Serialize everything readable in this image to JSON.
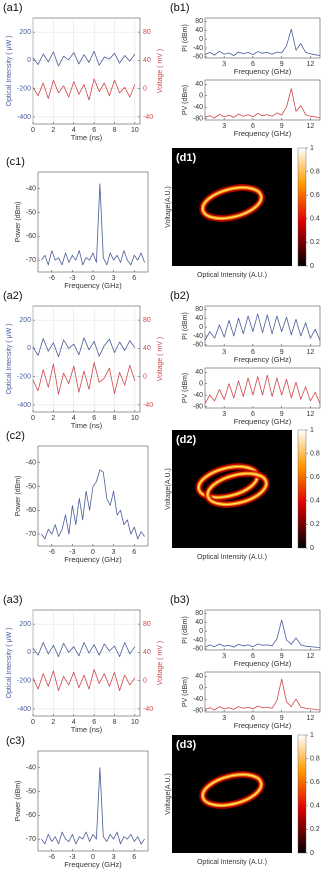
{
  "chart_data": [
    {
      "type": "line",
      "title": "(a1)",
      "xlabel": "Time (ns)",
      "ylabel": "Optical Intensity ( μW )",
      "y2label": "Voltage ( mV )",
      "grid": true,
      "x": [
        0,
        0.5,
        1,
        1.5,
        2,
        2.5,
        3,
        3.5,
        4,
        4.5,
        5,
        5.5,
        6,
        6.5,
        7,
        7.5,
        8,
        8.5,
        9,
        9.5,
        10
      ],
      "xlim": [
        0,
        10.5
      ],
      "xticks": [
        0,
        2,
        4,
        6,
        8,
        10
      ],
      "ylim": [
        -450,
        300
      ],
      "yticks": [
        -400,
        -200,
        0,
        200
      ],
      "y2lim": [
        -50,
        100
      ],
      "y2ticks": [
        -40,
        0,
        40,
        80
      ],
      "series": [
        {
          "color": "#4a5d9a",
          "values": [
            20,
            -30,
            45,
            -10,
            60,
            -40,
            30,
            5,
            55,
            -25,
            40,
            -15,
            65,
            -35,
            25,
            10,
            50,
            -20,
            35,
            -5,
            45
          ]
        },
        {
          "color": "#d0474a",
          "axis": "y2",
          "values": [
            2,
            -10,
            8,
            -14,
            12,
            -6,
            4,
            -12,
            10,
            -8,
            6,
            -16,
            14,
            -4,
            8,
            -10,
            12,
            -6,
            2,
            -12,
            6
          ]
        }
      ]
    },
    {
      "type": "line",
      "title": "(b1)",
      "xlabel": "Frequency (GHz)",
      "ylabel": "PI (dBm)",
      "grid": false,
      "x": [
        1,
        1.5,
        2,
        2.5,
        3,
        3.5,
        4,
        4.5,
        5,
        5.5,
        6,
        6.5,
        7,
        7.5,
        8,
        8.5,
        9,
        9.5,
        10,
        10.5,
        11,
        11.5,
        12,
        12.5,
        13
      ],
      "xlim": [
        1,
        13
      ],
      "xticks": [
        3,
        6,
        9,
        12
      ],
      "ylim": [
        -85,
        95
      ],
      "yticks": [
        -80,
        -40,
        0,
        40,
        80
      ],
      "series": [
        {
          "color": "#4a5d9a",
          "values": [
            -70,
            -60,
            -72,
            -55,
            -68,
            -62,
            -74,
            -58,
            -66,
            -60,
            -70,
            -56,
            -64,
            -60,
            -68,
            -58,
            -62,
            -30,
            45,
            -50,
            -20,
            -60,
            -66,
            -70,
            -74
          ]
        }
      ]
    },
    {
      "type": "line",
      "xlabel": "Frequency (GHz)",
      "ylabel": "PV (dBm)",
      "grid": false,
      "x": [
        1,
        1.5,
        2,
        2.5,
        3,
        3.5,
        4,
        4.5,
        5,
        5.5,
        6,
        6.5,
        7,
        7.5,
        8,
        8.5,
        9,
        9.5,
        10,
        10.5,
        11,
        11.5,
        12,
        12.5,
        13
      ],
      "xlim": [
        1,
        13
      ],
      "xticks": [
        3,
        6,
        9,
        12
      ],
      "ylim": [
        -85,
        55
      ],
      "yticks": [
        -80,
        -40,
        0,
        40
      ],
      "series": [
        {
          "color": "#d0474a",
          "values": [
            -75,
            -70,
            -78,
            -65,
            -74,
            -68,
            -76,
            -64,
            -72,
            -66,
            -74,
            -62,
            -70,
            -66,
            -72,
            -60,
            -68,
            -40,
            25,
            -55,
            -35,
            -66,
            -72,
            -74,
            -78
          ]
        }
      ]
    },
    {
      "type": "line",
      "title": "(c1)",
      "xlabel": "Frequency (GHz)",
      "ylabel": "Power (dBm)",
      "grid": false,
      "x": [
        -7.5,
        -7,
        -6.5,
        -6,
        -5.5,
        -5,
        -4.5,
        -4,
        -3.5,
        -3,
        -2.5,
        -2,
        -1.5,
        -1,
        -0.5,
        0,
        0.5,
        1,
        1.5,
        2,
        2.5,
        3,
        3.5,
        4,
        4.5,
        5,
        5.5,
        6,
        6.5,
        7,
        7.5
      ],
      "xlim": [
        -8,
        8
      ],
      "xticks": [
        -6,
        -3,
        0,
        3,
        6
      ],
      "ylim": [
        -75,
        -33
      ],
      "yticks": [
        -70,
        -60,
        -50,
        -40
      ],
      "series": [
        {
          "color": "#4a5d9a",
          "values": [
            -70,
            -68,
            -72,
            -66,
            -70,
            -69,
            -72,
            -67,
            -71,
            -68,
            -70,
            -66,
            -72,
            -69,
            -70,
            -67,
            -71,
            -38,
            -69,
            -72,
            -67,
            -70,
            -68,
            -71,
            -66,
            -70,
            -72,
            -68,
            -70,
            -67,
            -71
          ]
        }
      ]
    },
    {
      "type": "heatmap",
      "title": "(d1)",
      "xlabel": "Optical Intensity (A.U.)",
      "ylabel": "Voltage(A.U.)",
      "clim": [
        0,
        1
      ],
      "cticks": [
        0,
        0.2,
        0.4,
        0.6,
        0.8,
        1
      ]
    },
    {
      "type": "line",
      "title": "(a2)",
      "xlabel": "Time (ns)",
      "ylabel": "Optical Intensity ( μW )",
      "y2label": "Voltage ( mV )",
      "grid": true,
      "x": [
        0,
        0.5,
        1,
        1.5,
        2,
        2.5,
        3,
        3.5,
        4,
        4.5,
        5,
        5.5,
        6,
        6.5,
        7,
        7.5,
        8,
        8.5,
        9,
        9.5,
        10
      ],
      "xlim": [
        0,
        10.5
      ],
      "xticks": [
        0,
        2,
        4,
        6,
        8,
        10
      ],
      "ylim": [
        -450,
        300
      ],
      "yticks": [
        -400,
        -200,
        0,
        200
      ],
      "y2lim": [
        -50,
        100
      ],
      "y2ticks": [
        -40,
        0,
        40,
        80
      ],
      "series": [
        {
          "color": "#4a5d9a",
          "values": [
            10,
            -50,
            70,
            -20,
            40,
            -60,
            60,
            0,
            30,
            -45,
            75,
            -10,
            50,
            -55,
            20,
            65,
            -30,
            45,
            -15,
            55,
            5
          ]
        },
        {
          "color": "#d0474a",
          "axis": "y2",
          "values": [
            -5,
            -20,
            10,
            -15,
            18,
            -25,
            5,
            -10,
            15,
            -22,
            8,
            -18,
            20,
            -8,
            -2,
            12,
            -24,
            6,
            -12,
            16,
            -6
          ]
        }
      ]
    },
    {
      "type": "line",
      "title": "(b2)",
      "xlabel": "Frequency (GHz)",
      "ylabel": "PI (dBm)",
      "grid": false,
      "x": [
        1,
        1.5,
        2,
        2.5,
        3,
        3.5,
        4,
        4.5,
        5,
        5.5,
        6,
        6.5,
        7,
        7.5,
        8,
        8.5,
        9,
        9.5,
        10,
        10.5,
        11,
        11.5,
        12,
        12.5,
        13
      ],
      "xlim": [
        1,
        13
      ],
      "xticks": [
        3,
        6,
        9,
        12
      ],
      "ylim": [
        -85,
        95
      ],
      "yticks": [
        -80,
        -40,
        0,
        40,
        80
      ],
      "series": [
        {
          "color": "#4a5d9a",
          "values": [
            -60,
            -20,
            -50,
            10,
            -45,
            30,
            -40,
            40,
            -30,
            50,
            -20,
            60,
            -25,
            55,
            -30,
            50,
            -20,
            45,
            -35,
            35,
            -40,
            20,
            -50,
            -10,
            -60
          ]
        }
      ]
    },
    {
      "type": "line",
      "xlabel": "Frequency (GHz)",
      "ylabel": "PV (dBm)",
      "grid": false,
      "x": [
        1,
        1.5,
        2,
        2.5,
        3,
        3.5,
        4,
        4.5,
        5,
        5.5,
        6,
        6.5,
        7,
        7.5,
        8,
        8.5,
        9,
        9.5,
        10,
        10.5,
        11,
        11.5,
        12,
        12.5,
        13
      ],
      "xlim": [
        1,
        13
      ],
      "xticks": [
        3,
        6,
        9,
        12
      ],
      "ylim": [
        -85,
        55
      ],
      "yticks": [
        -80,
        -40,
        0,
        40
      ],
      "series": [
        {
          "color": "#d0474a",
          "values": [
            -70,
            -40,
            -60,
            -20,
            -55,
            0,
            -50,
            10,
            -45,
            20,
            -40,
            25,
            -40,
            30,
            -45,
            20,
            -40,
            15,
            -50,
            5,
            -55,
            -10,
            -60,
            -30,
            -70
          ]
        }
      ]
    },
    {
      "type": "line",
      "title": "(c2)",
      "xlabel": "Frequency (GHz)",
      "ylabel": "Power (dBm)",
      "grid": false,
      "x": [
        -7.5,
        -7,
        -6.5,
        -6,
        -5.5,
        -5,
        -4.5,
        -4,
        -3.5,
        -3,
        -2.5,
        -2,
        -1.5,
        -1,
        -0.5,
        0,
        0.5,
        1,
        1.5,
        2,
        2.5,
        3,
        3.5,
        4,
        4.5,
        5,
        5.5,
        6,
        6.5,
        7,
        7.5
      ],
      "xlim": [
        -8,
        8
      ],
      "xticks": [
        -6,
        -3,
        0,
        3,
        6
      ],
      "ylim": [
        -75,
        -33
      ],
      "yticks": [
        -70,
        -60,
        -50,
        -40
      ],
      "series": [
        {
          "color": "#4a5d9a",
          "values": [
            -70,
            -72,
            -68,
            -70,
            -66,
            -71,
            -68,
            -62,
            -70,
            -58,
            -66,
            -55,
            -64,
            -52,
            -60,
            -50,
            -48,
            -43,
            -44,
            -55,
            -58,
            -52,
            -62,
            -60,
            -66,
            -64,
            -70,
            -67,
            -72,
            -69,
            -71
          ]
        }
      ]
    },
    {
      "type": "heatmap",
      "title": "(d2)",
      "xlabel": "Optical Intensity (A.U.)",
      "ylabel": "Voltage(A.U.)",
      "clim": [
        0,
        1
      ],
      "cticks": [
        0,
        0.2,
        0.4,
        0.6,
        0.8,
        1
      ]
    },
    {
      "type": "line",
      "title": "(a3)",
      "xlabel": "Time (ns)",
      "ylabel": "Optical Intensity ( μW )",
      "y2label": "Voltage ( mV )",
      "grid": true,
      "x": [
        0,
        0.5,
        1,
        1.5,
        2,
        2.5,
        3,
        3.5,
        4,
        4.5,
        5,
        5.5,
        6,
        6.5,
        7,
        7.5,
        8,
        8.5,
        9,
        9.5,
        10
      ],
      "xlim": [
        0,
        10.5
      ],
      "xticks": [
        0,
        2,
        4,
        6,
        8,
        10
      ],
      "ylim": [
        -450,
        300
      ],
      "yticks": [
        -400,
        -200,
        0,
        200
      ],
      "y2lim": [
        -50,
        100
      ],
      "y2ticks": [
        -40,
        0,
        40,
        80
      ],
      "series": [
        {
          "color": "#4a5d9a",
          "values": [
            30,
            -20,
            70,
            -10,
            50,
            -30,
            65,
            0,
            40,
            -25,
            70,
            -5,
            55,
            -20,
            60,
            10,
            45,
            -30,
            70,
            -10,
            40
          ]
        },
        {
          "color": "#d0474a",
          "axis": "y2",
          "values": [
            4,
            -12,
            10,
            -8,
            14,
            -14,
            6,
            -6,
            12,
            -10,
            8,
            -12,
            16,
            -4,
            10,
            -8,
            12,
            -14,
            8,
            -6,
            4
          ]
        }
      ]
    },
    {
      "type": "line",
      "title": "(b3)",
      "xlabel": "Frequency (GHz)",
      "ylabel": "PI (dBm)",
      "grid": false,
      "x": [
        1,
        1.5,
        2,
        2.5,
        3,
        3.5,
        4,
        4.5,
        5,
        5.5,
        6,
        6.5,
        7,
        7.5,
        8,
        8.5,
        9,
        9.5,
        10,
        10.5,
        11,
        11.5,
        12,
        12.5,
        13
      ],
      "xlim": [
        1,
        13
      ],
      "xticks": [
        3,
        6,
        9,
        12
      ],
      "ylim": [
        -85,
        95
      ],
      "yticks": [
        -80,
        -40,
        0,
        40,
        80
      ],
      "series": [
        {
          "color": "#4a5d9a",
          "values": [
            -72,
            -62,
            -70,
            -58,
            -68,
            -64,
            -72,
            -60,
            -66,
            -62,
            -70,
            -58,
            -64,
            -62,
            -66,
            -35,
            50,
            -40,
            -60,
            -30,
            -62,
            -68,
            -70,
            -72,
            -74
          ]
        }
      ]
    },
    {
      "type": "line",
      "xlabel": "Frequency (GHz)",
      "ylabel": "PV (dBm)",
      "grid": false,
      "x": [
        1,
        1.5,
        2,
        2.5,
        3,
        3.5,
        4,
        4.5,
        5,
        5.5,
        6,
        6.5,
        7,
        7.5,
        8,
        8.5,
        9,
        9.5,
        10,
        10.5,
        11,
        11.5,
        12,
        12.5,
        13
      ],
      "xlim": [
        1,
        13
      ],
      "xticks": [
        3,
        6,
        9,
        12
      ],
      "ylim": [
        -85,
        55
      ],
      "yticks": [
        -80,
        -40,
        0,
        40
      ],
      "series": [
        {
          "color": "#d0474a",
          "values": [
            -76,
            -70,
            -78,
            -66,
            -74,
            -70,
            -76,
            -66,
            -72,
            -68,
            -74,
            -64,
            -70,
            -68,
            -72,
            -45,
            30,
            -50,
            -66,
            -40,
            -68,
            -72,
            -74,
            -76,
            -78
          ]
        }
      ]
    },
    {
      "type": "line",
      "title": "(c3)",
      "xlabel": "Frequency (GHz)",
      "ylabel": "Power (dBm)",
      "grid": false,
      "x": [
        -7.5,
        -7,
        -6.5,
        -6,
        -5.5,
        -5,
        -4.5,
        -4,
        -3.5,
        -3,
        -2.5,
        -2,
        -1.5,
        -1,
        -0.5,
        0,
        0.5,
        1,
        1.5,
        2,
        2.5,
        3,
        3.5,
        4,
        4.5,
        5,
        5.5,
        6,
        6.5,
        7,
        7.5
      ],
      "xlim": [
        -8,
        8
      ],
      "xticks": [
        -6,
        -3,
        0,
        3,
        6
      ],
      "ylim": [
        -75,
        -33
      ],
      "yticks": [
        -70,
        -60,
        -50,
        -40
      ],
      "series": [
        {
          "color": "#4a5d9a",
          "values": [
            -70,
            -72,
            -68,
            -71,
            -69,
            -72,
            -67,
            -70,
            -71,
            -68,
            -72,
            -69,
            -70,
            -67,
            -71,
            -68,
            -70,
            -40,
            -69,
            -71,
            -68,
            -70,
            -67,
            -72,
            -69,
            -70,
            -68,
            -71,
            -69,
            -72,
            -70
          ]
        }
      ]
    },
    {
      "type": "heatmap",
      "title": "(d3)",
      "xlabel": "Optical Intensity (A.U.)",
      "ylabel": "Voltage(A.U.)",
      "clim": [
        0,
        1
      ],
      "cticks": [
        0,
        0.2,
        0.4,
        0.6,
        0.8,
        1
      ]
    }
  ]
}
